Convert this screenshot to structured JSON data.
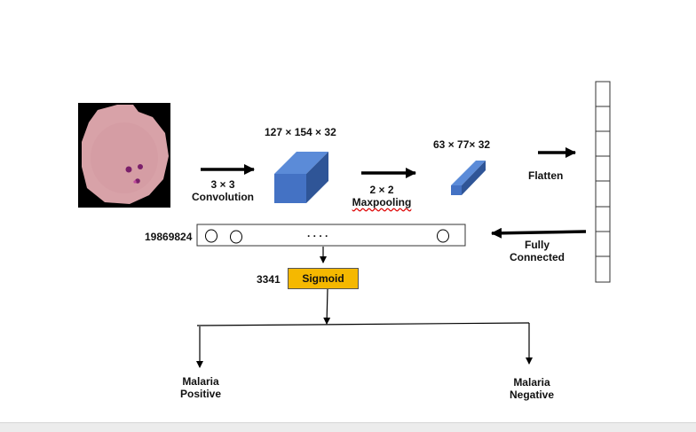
{
  "input_image": {
    "icon": "blood-cell-image"
  },
  "conv": {
    "line1": "3 × 3",
    "line2": "Convolution"
  },
  "conv_output": {
    "dims": "127 × 154 × 32"
  },
  "pool": {
    "line1": "2 × 2",
    "line2": "Maxpooling"
  },
  "pool_output": {
    "dims": "63 × 77× 32"
  },
  "flatten": {
    "label": "Flatten"
  },
  "fully_connected": {
    "line1": "Fully",
    "line2": "Connected",
    "count": "19869824",
    "dots": ". . . ."
  },
  "sigmoid": {
    "label": "Sigmoid",
    "count": "3341"
  },
  "outputs": {
    "positive": {
      "line1": "Malaria",
      "line2": "Positive"
    },
    "negative": {
      "line1": "Malaria",
      "line2": "Negative"
    }
  },
  "colors": {
    "cube_front": "#4472c4",
    "cube_top": "#5b8bd8",
    "cube_side": "#2f5597",
    "sigmoid": "#f5b800"
  }
}
